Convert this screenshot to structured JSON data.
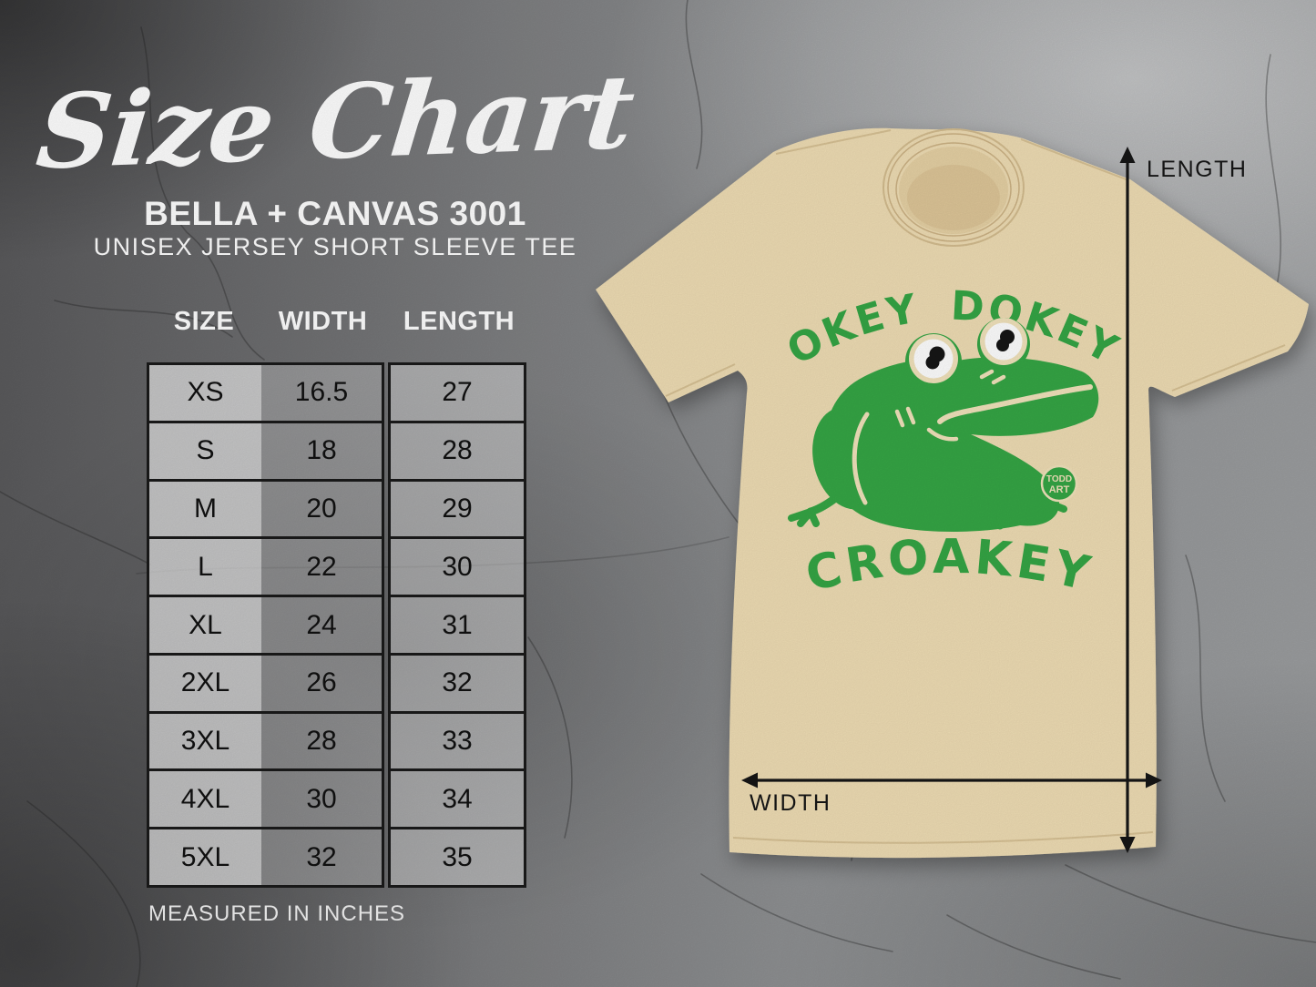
{
  "header": {
    "title_script": "Size Chart",
    "subtitle": "BELLA + CANVAS 3001",
    "subtitle2": "UNISEX JERSEY SHORT SLEEVE TEE"
  },
  "size_table": {
    "columns": [
      "SIZE",
      "WIDTH",
      "LENGTH"
    ],
    "rows": [
      {
        "size": "XS",
        "width": "16.5",
        "length": "27"
      },
      {
        "size": "S",
        "width": "18",
        "length": "28"
      },
      {
        "size": "M",
        "width": "20",
        "length": "29"
      },
      {
        "size": "L",
        "width": "22",
        "length": "30"
      },
      {
        "size": "XL",
        "width": "24",
        "length": "31"
      },
      {
        "size": "2XL",
        "width": "26",
        "length": "32"
      },
      {
        "size": "3XL",
        "width": "28",
        "length": "33"
      },
      {
        "size": "4XL",
        "width": "30",
        "length": "34"
      },
      {
        "size": "5XL",
        "width": "32",
        "length": "35"
      }
    ],
    "footnote": "MEASURED IN INCHES",
    "units": "inches"
  },
  "shirt": {
    "product": "Bella + Canvas 3001 unisex jersey short sleeve tee",
    "design_text_top": "OKEY DOKEY",
    "design_text_bottom": "CROAKEY",
    "design_subject": "green cartoon frog",
    "badge_line1": "TODD",
    "badge_line2": "ART",
    "length_arrow_label": "LENGTH",
    "width_arrow_label": "WIDTH"
  },
  "colors": {
    "shirt_cream": "#efddb4",
    "shirt_seam": "#d4bd8f",
    "collar_inner": "#e6d1a4",
    "collar_shadow": "#dcc496",
    "design_green": "#35a645",
    "design_cream": "#f2e3bc",
    "ink": "#161616",
    "table_border": "#1a1a1a",
    "cell_text": "#111111",
    "heading_white": "#ffffff"
  }
}
